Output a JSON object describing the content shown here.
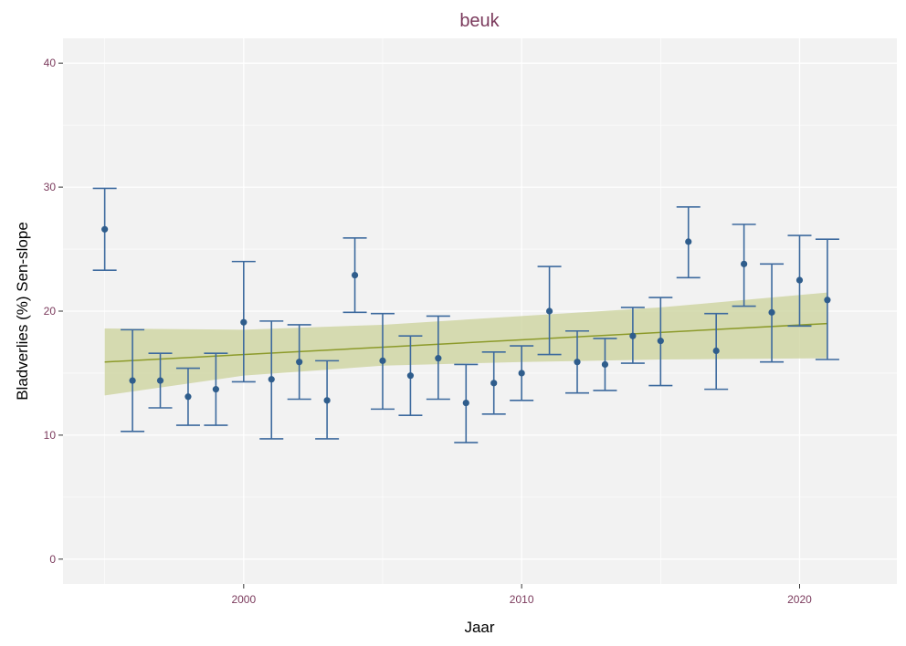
{
  "chart_data": {
    "type": "scatter",
    "title": "beuk",
    "xlabel": "Jaar",
    "ylabel": "Bladverlies (%) Sen-slope",
    "xlim": [
      1993.5,
      2023.5
    ],
    "ylim": [
      -2,
      42
    ],
    "xticks": [
      2000,
      2010,
      2020
    ],
    "yticks": [
      0,
      10,
      20,
      30,
      40
    ],
    "grid": true,
    "colors": {
      "title": "#7b3a5c",
      "tick_label": "#7b3a5c",
      "panel_bg": "#f2f2f2",
      "grid": "#ffffff",
      "point": "#2f5d8c",
      "errorbar": "#3d6a9e",
      "trend_line": "#8c9a2a",
      "trend_band": "#c9d096"
    },
    "series": [
      {
        "kind": "point_with_errorbar",
        "x": [
          1995,
          1996,
          1997,
          1998,
          1999,
          2000,
          2001,
          2002,
          2003,
          2004,
          2005,
          2006,
          2007,
          2008,
          2009,
          2010,
          2011,
          2012,
          2013,
          2014,
          2015,
          2016,
          2017,
          2018,
          2019,
          2020,
          2021
        ],
        "y": [
          26.6,
          14.4,
          14.4,
          13.1,
          13.7,
          19.1,
          14.5,
          15.9,
          12.8,
          22.9,
          16.0,
          14.8,
          16.2,
          12.6,
          14.2,
          15.0,
          20.0,
          15.9,
          15.7,
          18.0,
          17.6,
          25.6,
          16.8,
          23.8,
          19.9,
          22.5,
          20.9
        ],
        "lower": [
          23.3,
          10.3,
          12.2,
          10.8,
          10.8,
          14.3,
          9.7,
          12.9,
          9.7,
          19.9,
          12.1,
          11.6,
          12.9,
          9.4,
          11.7,
          12.8,
          16.5,
          13.4,
          13.6,
          15.8,
          14.0,
          22.7,
          13.7,
          20.4,
          15.9,
          18.8,
          16.1
        ],
        "upper": [
          29.9,
          18.5,
          16.6,
          15.4,
          16.6,
          24.0,
          19.2,
          18.9,
          16.0,
          25.9,
          19.8,
          18.0,
          19.6,
          15.7,
          16.7,
          17.2,
          23.6,
          18.4,
          17.8,
          20.3,
          21.1,
          28.4,
          19.8,
          27.0,
          23.8,
          26.1,
          25.8
        ]
      },
      {
        "kind": "trend_line",
        "x": [
          1995,
          2021
        ],
        "y": [
          15.9,
          19.0
        ]
      },
      {
        "kind": "confidence_band",
        "x": [
          1995,
          2000,
          2005,
          2010,
          2015,
          2021
        ],
        "lower": [
          13.2,
          14.8,
          15.6,
          15.9,
          16.1,
          16.2
        ],
        "upper": [
          18.6,
          18.5,
          18.9,
          19.6,
          20.3,
          21.5
        ]
      }
    ]
  }
}
